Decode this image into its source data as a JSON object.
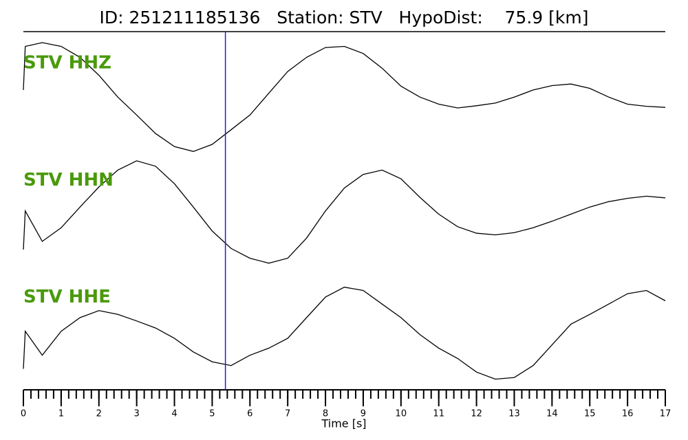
{
  "chart_data": {
    "type": "seismogram",
    "title": "ID: 251211185136   Station: STV   HypoDist:    75.9 [km]",
    "xlabel": "Time [s]",
    "xlim": [
      0,
      17
    ],
    "xticks": [
      0,
      1,
      2,
      3,
      4,
      5,
      6,
      7,
      8,
      9,
      10,
      11,
      12,
      13,
      14,
      15,
      16,
      17
    ],
    "minor_xtick_step": 0.2,
    "ylim": [
      -1,
      1
    ],
    "pick_time": 5.35,
    "pick_color": "#1f1fcc",
    "label_color": "#4a9a0a",
    "x": [
      0,
      0.05,
      0.5,
      1,
      1.5,
      2,
      2.5,
      3,
      3.5,
      4,
      4.5,
      5,
      5.5,
      6,
      6.5,
      7,
      7.5,
      8,
      8.5,
      9,
      9.5,
      10,
      10.5,
      11,
      11.5,
      12,
      12.5,
      13,
      13.5,
      14,
      14.5,
      15,
      15.5,
      16,
      16.5,
      17
    ],
    "series": [
      {
        "name": "STV HHZ",
        "color": "#000000",
        "values": [
          0.13,
          0.93,
          1.0,
          0.93,
          0.73,
          0.4,
          0,
          -0.33,
          -0.67,
          -0.91,
          -1.0,
          -0.87,
          -0.6,
          -0.33,
          0.07,
          0.47,
          0.73,
          0.91,
          0.93,
          0.8,
          0.53,
          0.2,
          0,
          -0.13,
          -0.2,
          -0.16,
          -0.11,
          0,
          0.13,
          0.21,
          0.24,
          0.16,
          0,
          -0.13,
          -0.17,
          -0.19
        ]
      },
      {
        "name": "STV HHN",
        "color": "#000000",
        "values": [
          -0.65,
          0.06,
          -0.5,
          -0.25,
          0.13,
          0.5,
          0.81,
          0.98,
          0.88,
          0.56,
          0.13,
          -0.31,
          -0.63,
          -0.81,
          -0.9,
          -0.81,
          -0.44,
          0.06,
          0.48,
          0.73,
          0.81,
          0.65,
          0.31,
          0,
          -0.23,
          -0.35,
          -0.38,
          -0.34,
          -0.25,
          -0.13,
          0,
          0.13,
          0.23,
          0.29,
          0.33,
          0.3
        ]
      },
      {
        "name": "STV HHE",
        "color": "#000000",
        "values": [
          -0.69,
          0,
          -0.44,
          0,
          0.25,
          0.38,
          0.31,
          0.19,
          0.06,
          -0.13,
          -0.38,
          -0.56,
          -0.63,
          -0.44,
          -0.31,
          -0.13,
          0.25,
          0.63,
          0.81,
          0.75,
          0.5,
          0.25,
          -0.06,
          -0.31,
          -0.5,
          -0.75,
          -0.88,
          -0.85,
          -0.63,
          -0.25,
          0.13,
          0.31,
          0.5,
          0.69,
          0.75,
          0.56
        ]
      }
    ]
  }
}
